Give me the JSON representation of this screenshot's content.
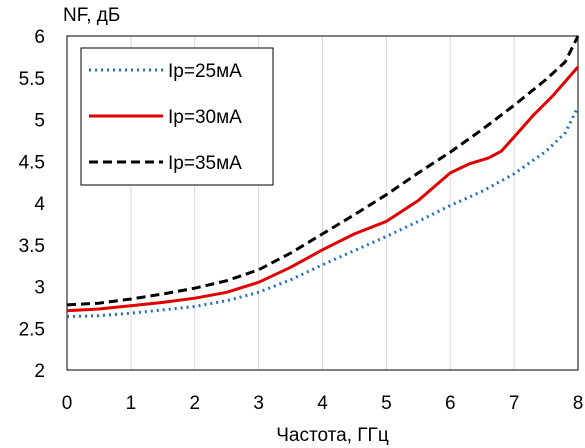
{
  "chart_data": {
    "type": "line",
    "title": "",
    "xlabel": "Частота, ГГц",
    "ylabel": "NF, дБ",
    "xlim": [
      0,
      8
    ],
    "ylim": [
      2,
      6
    ],
    "xticks": [
      0,
      1,
      2,
      3,
      4,
      5,
      6,
      7,
      8
    ],
    "yticks": [
      2,
      2.5,
      3,
      3.5,
      4,
      4.5,
      5,
      5.5,
      6
    ],
    "xtick_labels": [
      "0",
      "1",
      "2",
      "3",
      "4",
      "5",
      "6",
      "7",
      "8"
    ],
    "ytick_labels": [
      "2",
      "2.5",
      "3",
      "3.5",
      "4",
      "4.5",
      "5",
      "5.5",
      "6"
    ],
    "grid": {
      "x": true,
      "y": false
    },
    "legend_position": "top-left",
    "series": [
      {
        "name": "Ip=25мА",
        "style": "dotted",
        "color": "#1f6fc4",
        "x": [
          0,
          0.5,
          1,
          1.5,
          2,
          2.5,
          3,
          3.5,
          4,
          4.5,
          5,
          5.5,
          6,
          6.5,
          7,
          7.5,
          7.8,
          8
        ],
        "y": [
          2.64,
          2.65,
          2.68,
          2.72,
          2.76,
          2.83,
          2.93,
          3.08,
          3.26,
          3.43,
          3.6,
          3.78,
          3.97,
          4.14,
          4.35,
          4.62,
          4.84,
          5.15
        ]
      },
      {
        "name": "Ip=30мА",
        "style": "solid",
        "color": "#e00000",
        "x": [
          0,
          0.5,
          1,
          1.5,
          2,
          2.5,
          3,
          3.5,
          4,
          4.5,
          5,
          5.5,
          6,
          6.3,
          6.6,
          6.8,
          7,
          7.3,
          7.6,
          8
        ],
        "y": [
          2.71,
          2.73,
          2.77,
          2.81,
          2.86,
          2.93,
          3.05,
          3.23,
          3.44,
          3.63,
          3.78,
          4.03,
          4.36,
          4.47,
          4.54,
          4.62,
          4.79,
          5.05,
          5.28,
          5.63
        ]
      },
      {
        "name": "Ip=35мА",
        "style": "dashed",
        "color": "#000000",
        "x": [
          0,
          0.5,
          1,
          1.5,
          2,
          2.5,
          3,
          3.5,
          4,
          4.5,
          5,
          5.5,
          6,
          6.5,
          7,
          7.5,
          7.8,
          8
        ],
        "y": [
          2.78,
          2.8,
          2.85,
          2.91,
          2.98,
          3.07,
          3.2,
          3.4,
          3.63,
          3.86,
          4.1,
          4.36,
          4.61,
          4.88,
          5.17,
          5.48,
          5.69,
          6.0
        ]
      }
    ]
  }
}
